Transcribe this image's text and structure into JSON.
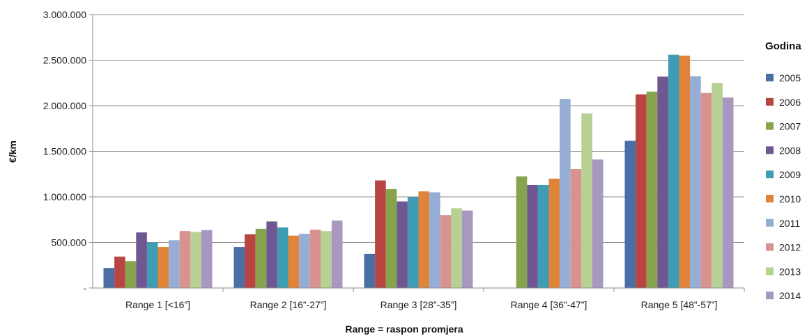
{
  "chart_data": {
    "type": "bar",
    "xlabel": "Range = raspon promjera",
    "ylabel": "€/km",
    "ylim": [
      0,
      3000000
    ],
    "grid": true,
    "legend_position": "right",
    "legend_title": "Godina",
    "yticks": [
      {
        "value": 0,
        "label": "-"
      },
      {
        "value": 500000,
        "label": "500.000"
      },
      {
        "value": 1000000,
        "label": "1.000.000"
      },
      {
        "value": 1500000,
        "label": "1.500.000"
      },
      {
        "value": 2000000,
        "label": "2.000.000"
      },
      {
        "value": 2500000,
        "label": "2.500.000"
      },
      {
        "value": 3000000,
        "label": "3.000.000"
      }
    ],
    "categories": [
      "Range 1 [<16”]",
      "Range 2 [16”-27”]",
      "Range 3 [28”-35”]",
      "Range 4 [36”-47”]",
      "Range 5 [48”-57”]"
    ],
    "series": [
      {
        "name": "2005",
        "color": "#4a6fa5",
        "values": [
          220000,
          450000,
          375000,
          0,
          1615000
        ]
      },
      {
        "name": "2006",
        "color": "#b84542",
        "values": [
          345000,
          590000,
          1180000,
          0,
          2125000
        ]
      },
      {
        "name": "2007",
        "color": "#87a34c",
        "values": [
          295000,
          650000,
          1085000,
          1225000,
          2155000
        ]
      },
      {
        "name": "2008",
        "color": "#6f5791",
        "values": [
          610000,
          730000,
          950000,
          1130000,
          2320000
        ]
      },
      {
        "name": "2009",
        "color": "#3e9db4",
        "values": [
          500000,
          665000,
          1000000,
          1130000,
          2560000
        ]
      },
      {
        "name": "2010",
        "color": "#e0843a",
        "values": [
          450000,
          575000,
          1060000,
          1200000,
          2550000
        ]
      },
      {
        "name": "2011",
        "color": "#96aed6",
        "values": [
          525000,
          595000,
          1050000,
          2075000,
          2325000
        ]
      },
      {
        "name": "2012",
        "color": "#d89391",
        "values": [
          625000,
          640000,
          800000,
          1305000,
          2140000
        ]
      },
      {
        "name": "2013",
        "color": "#b6d193",
        "values": [
          615000,
          625000,
          875000,
          1915000,
          2250000
        ]
      },
      {
        "name": "2014",
        "color": "#a898c1",
        "values": [
          635000,
          740000,
          850000,
          1410000,
          2090000
        ]
      }
    ]
  }
}
